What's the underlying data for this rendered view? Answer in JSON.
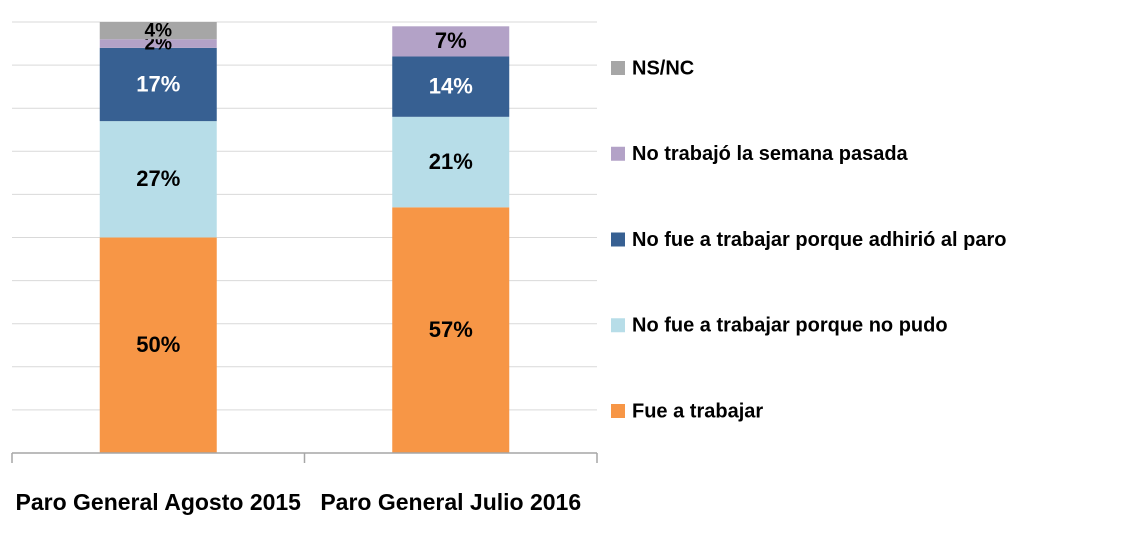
{
  "chart_data": {
    "type": "stacked_bar",
    "categories": [
      "Paro General Agosto 2015",
      "Paro General Julio 2016"
    ],
    "series": [
      {
        "name": "Fue a trabajar",
        "color": "#f79646",
        "label_color": "#000000",
        "values": [
          50,
          57
        ],
        "value_labels": [
          "50%",
          "57%"
        ]
      },
      {
        "name": "No fue a trabajar porque no pudo",
        "color": "#b7dde8",
        "label_color": "#000000",
        "values": [
          27,
          21
        ],
        "value_labels": [
          "27%",
          "21%"
        ]
      },
      {
        "name": "No fue a trabajar porque adhirió al paro",
        "color": "#376092",
        "label_color": "#ffffff",
        "values": [
          17,
          14
        ],
        "value_labels": [
          "17%",
          "14%"
        ]
      },
      {
        "name": "No trabajó la semana pasada",
        "color": "#b3a2c7",
        "label_color": "#000000",
        "values": [
          2,
          7
        ],
        "value_labels": [
          "2%",
          "7%"
        ]
      },
      {
        "name": "NS/NC",
        "color": "#a6a6a6",
        "label_color": "#000000",
        "values": [
          4,
          null
        ],
        "value_labels": [
          "4%",
          null
        ]
      }
    ],
    "ylim": [
      0,
      100
    ],
    "yticks": [
      0,
      10,
      20,
      30,
      40,
      50,
      60,
      70,
      80,
      90,
      100
    ],
    "grid": true,
    "legend": "right"
  }
}
